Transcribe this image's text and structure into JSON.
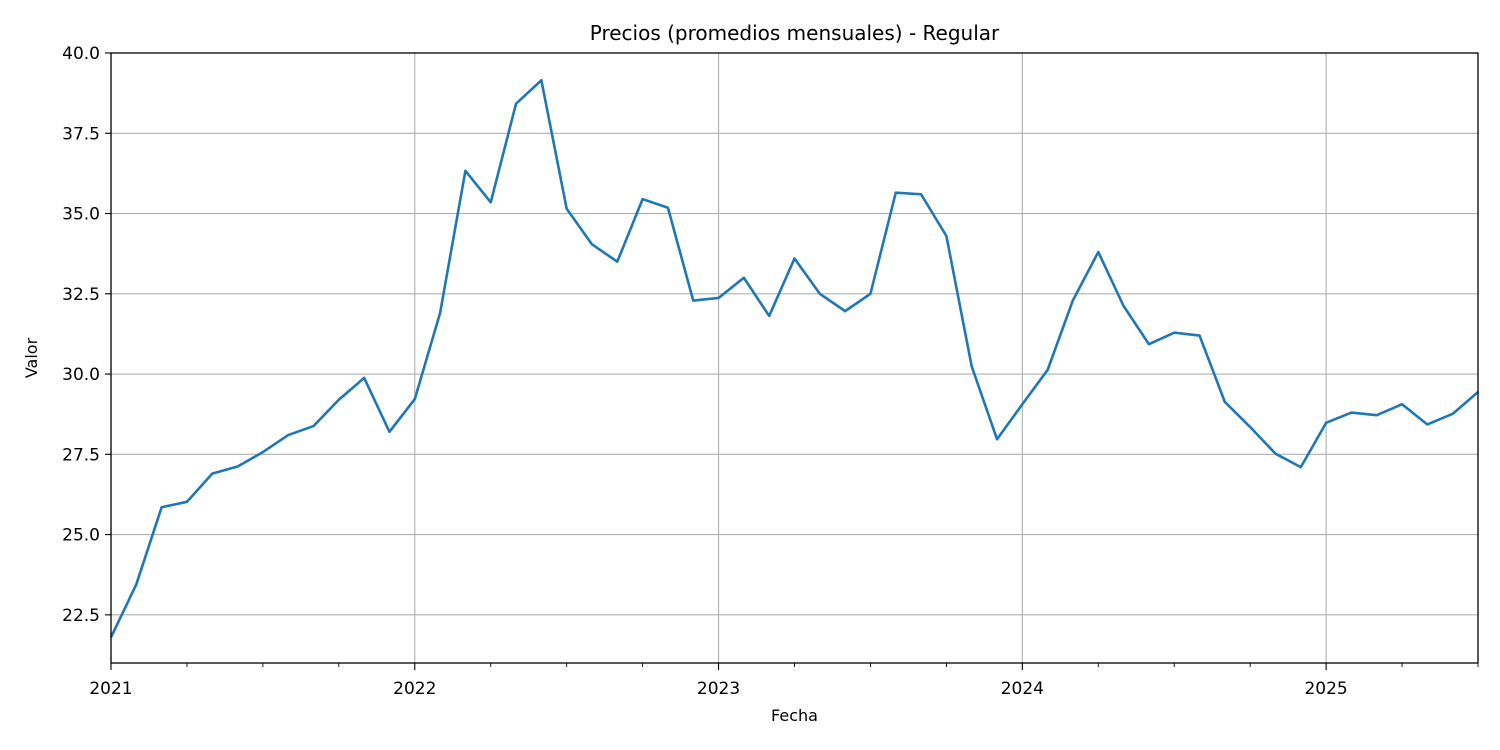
{
  "chart_data": {
    "type": "line",
    "title": "Precios (promedios mensuales) - Regular",
    "xlabel": "Fecha",
    "ylabel": "Valor",
    "grid": true,
    "legend": "none",
    "x_range": [
      "2021-01",
      "2025-07"
    ],
    "ylim": [
      21.0,
      40.0
    ],
    "y_ticks": [
      22.5,
      25.0,
      27.5,
      30.0,
      32.5,
      35.0,
      37.5,
      40.0
    ],
    "y_tick_labels": [
      "22.5",
      "25.0",
      "27.5",
      "30.0",
      "32.5",
      "35.0",
      "37.5",
      "40.0"
    ],
    "x_ticks": [
      "2021-01",
      "2022-01",
      "2023-01",
      "2024-01",
      "2025-01"
    ],
    "x_tick_labels": [
      "2021",
      "2022",
      "2023",
      "2024",
      "2025"
    ],
    "series": [
      {
        "color": "#1f77b4",
        "x": [
          "2021-01",
          "2021-02",
          "2021-03",
          "2021-04",
          "2021-05",
          "2021-06",
          "2021-07",
          "2021-08",
          "2021-09",
          "2021-10",
          "2021-11",
          "2021-12",
          "2022-01",
          "2022-02",
          "2022-03",
          "2022-04",
          "2022-05",
          "2022-06",
          "2022-07",
          "2022-08",
          "2022-09",
          "2022-10",
          "2022-11",
          "2022-12",
          "2023-01",
          "2023-02",
          "2023-03",
          "2023-04",
          "2023-05",
          "2023-06",
          "2023-07",
          "2023-08",
          "2023-09",
          "2023-10",
          "2023-11",
          "2023-12",
          "2024-01",
          "2024-02",
          "2024-03",
          "2024-04",
          "2024-05",
          "2024-06",
          "2024-07",
          "2024-08",
          "2024-09",
          "2024-10",
          "2024-11",
          "2024-12",
          "2025-01",
          "2025-02",
          "2025-03",
          "2025-04",
          "2025-05",
          "2025-06",
          "2025-07"
        ],
        "y": [
          21.8,
          23.45,
          25.85,
          26.02,
          26.9,
          27.12,
          27.57,
          28.1,
          28.38,
          29.2,
          29.88,
          28.2,
          29.22,
          31.9,
          36.33,
          35.35,
          38.42,
          39.15,
          35.15,
          34.04,
          33.5,
          35.45,
          35.18,
          32.29,
          32.37,
          33.0,
          31.81,
          33.6,
          32.5,
          31.96,
          32.5,
          35.65,
          35.6,
          34.3,
          30.24,
          27.97,
          29.06,
          30.13,
          32.3,
          33.8,
          32.12,
          30.93,
          31.29,
          31.2,
          29.13,
          28.35,
          27.52,
          27.1,
          28.48,
          28.8,
          28.72,
          29.06,
          28.43,
          28.76,
          29.44
        ]
      }
    ]
  }
}
